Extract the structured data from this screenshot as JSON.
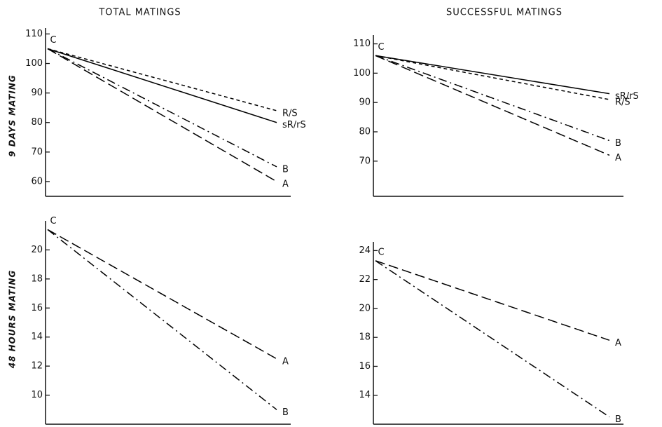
{
  "column_titles": [
    "TOTAL MATINGS",
    "SUCCESSFUL MATINGS"
  ],
  "row_titles": [
    "9 DAYS MATING",
    "48 HOURS MATING"
  ],
  "chart_data": [
    {
      "type": "line",
      "categories": [
        "C",
        null
      ],
      "ylim": [
        55,
        112
      ],
      "yticks": [
        60,
        70,
        80,
        90,
        100,
        110
      ],
      "grid": false,
      "series": [
        {
          "name": "R/S",
          "color": "#000000",
          "line_style": "dashed",
          "values": [
            105,
            84
          ]
        },
        {
          "name": "sR/rS",
          "color": "#000000",
          "line_style": "solid",
          "values": [
            105,
            80
          ]
        },
        {
          "name": "B",
          "color": "#000000",
          "line_style": "dash-dot",
          "values": [
            105,
            65
          ]
        },
        {
          "name": "A",
          "color": "#000000",
          "line_style": "long-dashed",
          "values": [
            105,
            60
          ]
        }
      ]
    },
    {
      "type": "line",
      "categories": [
        "C",
        null
      ],
      "ylim": [
        58,
        113
      ],
      "yticks": [
        70,
        80,
        90,
        100,
        110
      ],
      "grid": false,
      "series": [
        {
          "name": "sR/rS",
          "color": "#000000",
          "line_style": "solid",
          "values": [
            106,
            93
          ]
        },
        {
          "name": "R/S",
          "color": "#000000",
          "line_style": "dashed",
          "values": [
            106,
            91
          ]
        },
        {
          "name": "B",
          "color": "#000000",
          "line_style": "dash-dot",
          "values": [
            106,
            77
          ]
        },
        {
          "name": "A",
          "color": "#000000",
          "line_style": "long-dashed",
          "values": [
            106,
            72
          ]
        }
      ]
    },
    {
      "type": "line",
      "categories": [
        "C",
        null
      ],
      "ylim": [
        8,
        22
      ],
      "yticks": [
        10,
        12,
        14,
        16,
        18,
        20
      ],
      "grid": false,
      "series": [
        {
          "name": "A",
          "color": "#000000",
          "line_style": "long-dashed",
          "values": [
            21.4,
            12.5
          ]
        },
        {
          "name": "B",
          "color": "#000000",
          "line_style": "dash-dot",
          "values": [
            21.4,
            9
          ]
        }
      ]
    },
    {
      "type": "line",
      "categories": [
        "C",
        null
      ],
      "ylim": [
        12,
        24.6
      ],
      "yticks": [
        14,
        16,
        18,
        20,
        22,
        24
      ],
      "grid": false,
      "series": [
        {
          "name": "A",
          "color": "#000000",
          "line_style": "long-dashed",
          "values": [
            23.3,
            17.8
          ]
        },
        {
          "name": "B",
          "color": "#000000",
          "line_style": "dash-dot",
          "values": [
            23.3,
            12.5
          ]
        }
      ]
    }
  ]
}
